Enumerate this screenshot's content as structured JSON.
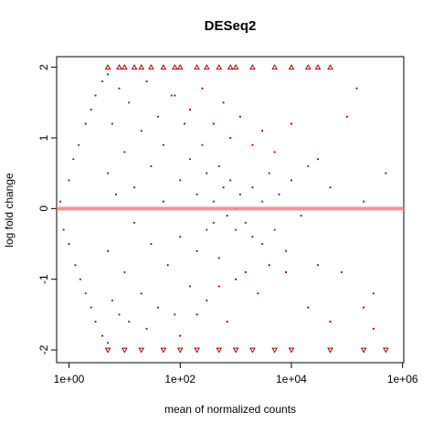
{
  "chart_data": {
    "type": "scatter",
    "title": "DESeq2",
    "xlabel": "mean of normalized counts",
    "ylabel": "log fold change",
    "xscale": "log",
    "xlim": [
      0.6,
      1050000
    ],
    "ylim": [
      -2.18,
      2.15
    ],
    "xticks": [
      {
        "value": 1,
        "label": "1e+00"
      },
      {
        "value": 100,
        "label": "1e+02"
      },
      {
        "value": 10000,
        "label": "1e+04"
      },
      {
        "value": 1000000,
        "label": "1e+06"
      }
    ],
    "yticks": [
      -2,
      -1,
      0,
      1,
      2
    ],
    "hline": 0,
    "hline_color": "#f08080",
    "series": [
      {
        "color": "#404040",
        "marker": "circle",
        "x": [
          0.7,
          0.8,
          1,
          1,
          1.2,
          1.3,
          1.5,
          1.6,
          2,
          2,
          2.5,
          2.5,
          3,
          3,
          4,
          4,
          5,
          5,
          5,
          5,
          6,
          6,
          7,
          8,
          8,
          10,
          10,
          12,
          12,
          15,
          15,
          20,
          20,
          25,
          25,
          30,
          30,
          40,
          40,
          50,
          50,
          60,
          70,
          80,
          100,
          100,
          120,
          150,
          150,
          200,
          200,
          250,
          300,
          300,
          400,
          400,
          500,
          500,
          600,
          700,
          800,
          1000,
          1000,
          1200,
          1500,
          2000,
          2000,
          3000,
          3000,
          4000,
          5000,
          6000,
          8000,
          10000,
          15000,
          20000,
          30000,
          50000,
          80000,
          200000,
          300000,
          500000
        ],
        "values": [
          0.1,
          -0.3,
          0.4,
          -0.5,
          0.7,
          -0.8,
          0.9,
          -1.0,
          1.2,
          -1.2,
          1.4,
          -1.4,
          1.6,
          -1.6,
          1.8,
          -1.8,
          1.9,
          -1.9,
          0.5,
          -0.6,
          1.2,
          -1.3,
          0.2,
          1.7,
          -1.5,
          0.8,
          -0.9,
          1.5,
          -1.6,
          0.3,
          -0.2,
          1.1,
          -1.2,
          1.8,
          -1.7,
          0.6,
          -0.5,
          1.3,
          -1.4,
          0.1,
          0.9,
          -0.8,
          1.6,
          -1.5,
          0.4,
          -0.4,
          1.2,
          -1.1,
          0.7,
          0.2,
          -0.6,
          0.9,
          -0.3,
          0.5,
          0.1,
          -0.2,
          0.6,
          -0.7,
          0.3,
          -0.1,
          0.4,
          0,
          -0.3,
          0.2,
          -0.2,
          0.3,
          -0.4,
          0.1,
          -0.5,
          0.5,
          -0.3,
          0.2,
          -0.6,
          0.4,
          -0.1,
          0.6,
          -0.8,
          0.3,
          -0.9,
          0.1,
          -1.2,
          0.5
        ]
      },
      {
        "color": "#b00000",
        "marker": "circle",
        "x": [
          80,
          100,
          150,
          200,
          250,
          300,
          400,
          500,
          600,
          700,
          800,
          1000,
          1200,
          1500,
          2000,
          2500,
          3000,
          4000,
          5000,
          8000,
          10000,
          20000,
          30000,
          50000,
          100000,
          200000,
          300000,
          150000
        ],
        "values": [
          1.6,
          -1.8,
          1.4,
          -1.5,
          1.7,
          -1.3,
          1.2,
          -1.1,
          1.5,
          -1.6,
          1.0,
          -1.0,
          1.3,
          -0.9,
          0.9,
          -1.2,
          1.1,
          -0.8,
          0.8,
          -0.9,
          1.2,
          -1.4,
          0.7,
          -1.6,
          1.3,
          -1.4,
          -1.7,
          1.7
        ]
      },
      {
        "color": "#b00000",
        "marker": "triangle-up",
        "x": [
          5,
          8,
          10,
          15,
          20,
          30,
          50,
          80,
          100,
          200,
          300,
          500,
          800,
          1000,
          2000,
          5000,
          10000,
          20000,
          30000,
          50000
        ],
        "values": [
          2,
          2,
          2,
          2,
          2,
          2,
          2,
          2,
          2,
          2,
          2,
          2,
          2,
          2,
          2,
          2,
          2,
          2,
          2,
          2
        ]
      },
      {
        "color": "#b00000",
        "marker": "triangle-down",
        "x": [
          5,
          10,
          20,
          50,
          100,
          200,
          500,
          1000,
          2000,
          5000,
          10000,
          50000,
          200000,
          500000
        ],
        "values": [
          -2,
          -2,
          -2,
          -2,
          -2,
          -2,
          -2,
          -2,
          -2,
          -2,
          -2,
          -2,
          -2,
          -2
        ]
      }
    ]
  }
}
